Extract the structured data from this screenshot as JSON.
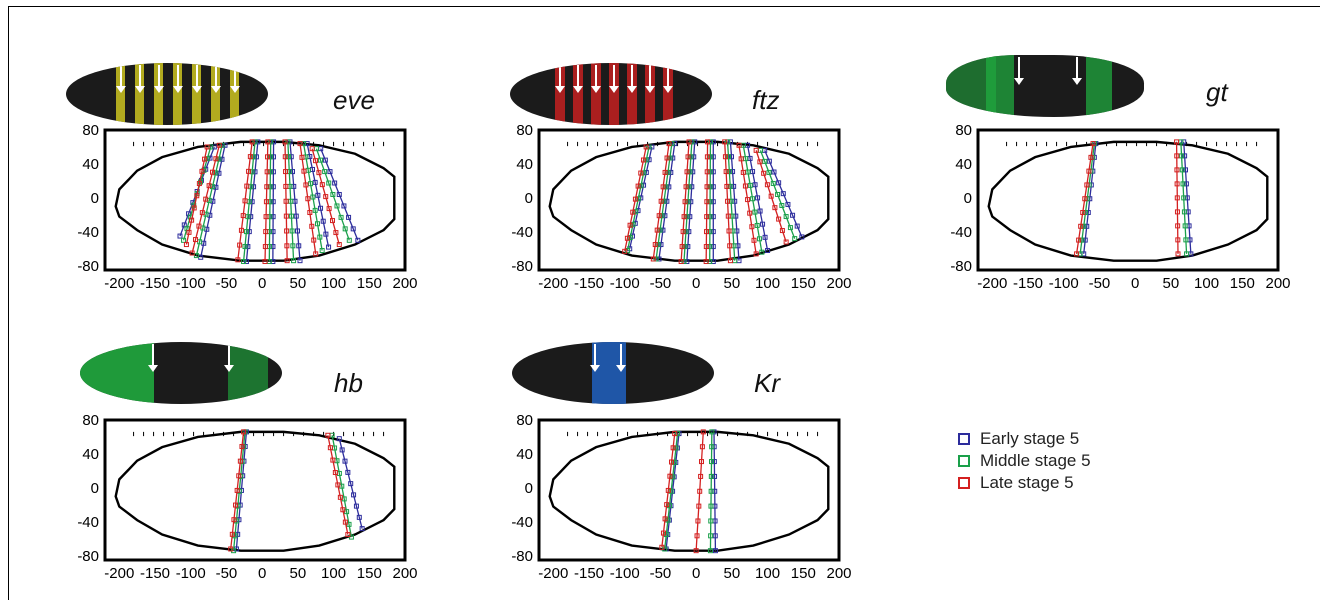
{
  "chart_data": [
    {
      "type": "line",
      "gene": "eve",
      "stripe_color": "#d8d020",
      "x_ticks": [
        -200,
        -150,
        -100,
        -50,
        0,
        50,
        100,
        150,
        200
      ],
      "y_ticks": [
        80,
        40,
        0,
        -40,
        -80
      ],
      "xlim": [
        -220,
        200
      ],
      "ylim": [
        -85,
        80
      ],
      "series": [
        {
          "color": "#2c2c9c",
          "lines": [
            [
              [
                -67,
                60
              ],
              [
                -115,
                -45
              ]
            ],
            [
              [
                -52,
                62
              ],
              [
                -86,
                -70
              ]
            ],
            [
              [
                -6,
                66
              ],
              [
                -22,
                -75
              ]
            ],
            [
              [
                16,
                66
              ],
              [
                15,
                -75
              ]
            ],
            [
              [
                39,
                66
              ],
              [
                53,
                -74
              ]
            ],
            [
              [
                63,
                64
              ],
              [
                93,
                -58
              ]
            ],
            [
              [
                82,
                58
              ],
              [
                134,
                -50
              ]
            ]
          ]
        },
        {
          "color": "#1aa04a",
          "lines": [
            [
              [
                -72,
                60
              ],
              [
                -110,
                -50
              ]
            ],
            [
              [
                -56,
                62
              ],
              [
                -92,
                -68
              ]
            ],
            [
              [
                -10,
                66
              ],
              [
                -26,
                -75
              ]
            ],
            [
              [
                12,
                66
              ],
              [
                10,
                -75
              ]
            ],
            [
              [
                36,
                66
              ],
              [
                44,
                -74
              ]
            ],
            [
              [
                58,
                64
              ],
              [
                84,
                -62
              ]
            ],
            [
              [
                76,
                58
              ],
              [
                122,
                -50
              ]
            ]
          ]
        },
        {
          "color": "#d42020",
          "lines": [
            [
              [
                -77,
                60
              ],
              [
                -106,
                -55
              ]
            ],
            [
              [
                -60,
                62
              ],
              [
                -98,
                -65
              ]
            ],
            [
              [
                -14,
                66
              ],
              [
                -34,
                -73
              ]
            ],
            [
              [
                8,
                66
              ],
              [
                4,
                -75
              ]
            ],
            [
              [
                32,
                66
              ],
              [
                35,
                -74
              ]
            ],
            [
              [
                53,
                64
              ],
              [
                75,
                -66
              ]
            ],
            [
              [
                70,
                58
              ],
              [
                108,
                -55
              ]
            ]
          ]
        }
      ]
    },
    {
      "type": "line",
      "gene": "ftz",
      "stripe_color": "#d02020",
      "x_ticks": [
        -200,
        -150,
        -100,
        -50,
        0,
        50,
        100,
        150,
        200
      ],
      "y_ticks": [
        80,
        40,
        0,
        -40,
        -80
      ],
      "xlim": [
        -220,
        200
      ],
      "ylim": [
        -85,
        80
      ],
      "series": [
        {
          "color": "#2c2c9c",
          "lines": [
            [
              [
                -62,
                60
              ],
              [
                -93,
                -60
              ]
            ],
            [
              [
                -30,
                64
              ],
              [
                -52,
                -72
              ]
            ],
            [
              [
                -2,
                66
              ],
              [
                -13,
                -75
              ]
            ],
            [
              [
                24,
                66
              ],
              [
                24,
                -75
              ]
            ],
            [
              [
                48,
                66
              ],
              [
                60,
                -74
              ]
            ],
            [
              [
                72,
                62
              ],
              [
                100,
                -62
              ]
            ],
            [
              [
                96,
                56
              ],
              [
                148,
                -46
              ]
            ]
          ]
        },
        {
          "color": "#1aa04a",
          "lines": [
            [
              [
                -66,
                60
              ],
              [
                -96,
                -62
              ]
            ],
            [
              [
                -34,
                64
              ],
              [
                -56,
                -72
              ]
            ],
            [
              [
                -6,
                66
              ],
              [
                -17,
                -75
              ]
            ],
            [
              [
                20,
                66
              ],
              [
                19,
                -75
              ]
            ],
            [
              [
                44,
                66
              ],
              [
                54,
                -74
              ]
            ],
            [
              [
                66,
                62
              ],
              [
                92,
                -64
              ]
            ],
            [
              [
                90,
                56
              ],
              [
                138,
                -48
              ]
            ]
          ]
        },
        {
          "color": "#d42020",
          "lines": [
            [
              [
                -70,
                60
              ],
              [
                -100,
                -63
              ]
            ],
            [
              [
                -38,
                64
              ],
              [
                -60,
                -72
              ]
            ],
            [
              [
                -10,
                66
              ],
              [
                -21,
                -75
              ]
            ],
            [
              [
                16,
                66
              ],
              [
                14,
                -75
              ]
            ],
            [
              [
                40,
                66
              ],
              [
                48,
                -74
              ]
            ],
            [
              [
                60,
                62
              ],
              [
                84,
                -66
              ]
            ],
            [
              [
                84,
                56
              ],
              [
                126,
                -52
              ]
            ]
          ]
        }
      ]
    },
    {
      "type": "line",
      "gene": "gt",
      "stripe_color": "#20b040",
      "x_ticks": [
        -200,
        -150,
        -100,
        -50,
        0,
        50,
        100,
        150,
        200
      ],
      "y_ticks": [
        80,
        40,
        0,
        -40,
        -80
      ],
      "xlim": [
        -220,
        200
      ],
      "ylim": [
        -85,
        80
      ],
      "series": [
        {
          "color": "#2c2c9c",
          "lines": [
            [
              [
                -55,
                64
              ],
              [
                -72,
                -66
              ]
            ],
            [
              [
                68,
                66
              ],
              [
                78,
                -66
              ]
            ]
          ]
        },
        {
          "color": "#1aa04a",
          "lines": [
            [
              [
                -57,
                64
              ],
              [
                -77,
                -66
              ]
            ],
            [
              [
                64,
                66
              ],
              [
                72,
                -66
              ]
            ]
          ]
        },
        {
          "color": "#d42020",
          "lines": [
            [
              [
                -59,
                64
              ],
              [
                -82,
                -66
              ]
            ],
            [
              [
                58,
                66
              ],
              [
                60,
                -66
              ]
            ]
          ]
        }
      ]
    },
    {
      "type": "line",
      "gene": "hb",
      "stripe_color": "#20b040",
      "x_ticks": [
        -200,
        -150,
        -100,
        -50,
        0,
        50,
        100,
        150,
        200
      ],
      "y_ticks": [
        80,
        40,
        0,
        -40,
        -80
      ],
      "xlim": [
        -220,
        200
      ],
      "ylim": [
        -85,
        80
      ],
      "series": [
        {
          "color": "#2c2c9c",
          "lines": [
            [
              [
                -22,
                66
              ],
              [
                -36,
                -72
              ]
            ],
            [
              [
                108,
                58
              ],
              [
                140,
                -48
              ]
            ]
          ]
        },
        {
          "color": "#1aa04a",
          "lines": [
            [
              [
                -24,
                66
              ],
              [
                -40,
                -74
              ]
            ],
            [
              [
                98,
                62
              ],
              [
                125,
                -58
              ]
            ]
          ]
        },
        {
          "color": "#d42020",
          "lines": [
            [
              [
                -26,
                66
              ],
              [
                -44,
                -72
              ]
            ],
            [
              [
                92,
                62
              ],
              [
                120,
                -55
              ]
            ]
          ]
        }
      ]
    },
    {
      "type": "line",
      "gene": "Kr",
      "stripe_color": "#2060c0",
      "x_ticks": [
        -200,
        -150,
        -100,
        -50,
        0,
        50,
        100,
        150,
        200
      ],
      "y_ticks": [
        80,
        40,
        0,
        -40,
        -80
      ],
      "xlim": [
        -220,
        200
      ],
      "ylim": [
        -85,
        80
      ],
      "series": [
        {
          "color": "#2c2c9c",
          "lines": [
            [
              [
                -24,
                64
              ],
              [
                -42,
                -72
              ]
            ],
            [
              [
                25,
                66
              ],
              [
                27,
                -74
              ]
            ]
          ]
        },
        {
          "color": "#1aa04a",
          "lines": [
            [
              [
                -26,
                64
              ],
              [
                -44,
                -72
              ]
            ],
            [
              [
                22,
                66
              ],
              [
                20,
                -74
              ]
            ]
          ]
        },
        {
          "color": "#d42020",
          "lines": [
            [
              [
                -30,
                64
              ],
              [
                -48,
                -70
              ]
            ],
            [
              [
                10,
                66
              ],
              [
                0,
                -74
              ]
            ]
          ]
        }
      ]
    }
  ],
  "legend": [
    {
      "label": "Early stage 5",
      "color": "#2c2c9c"
    },
    {
      "label": "Middle stage 5",
      "color": "#1aa04a"
    },
    {
      "label": "Late stage 5",
      "color": "#d42020"
    }
  ]
}
